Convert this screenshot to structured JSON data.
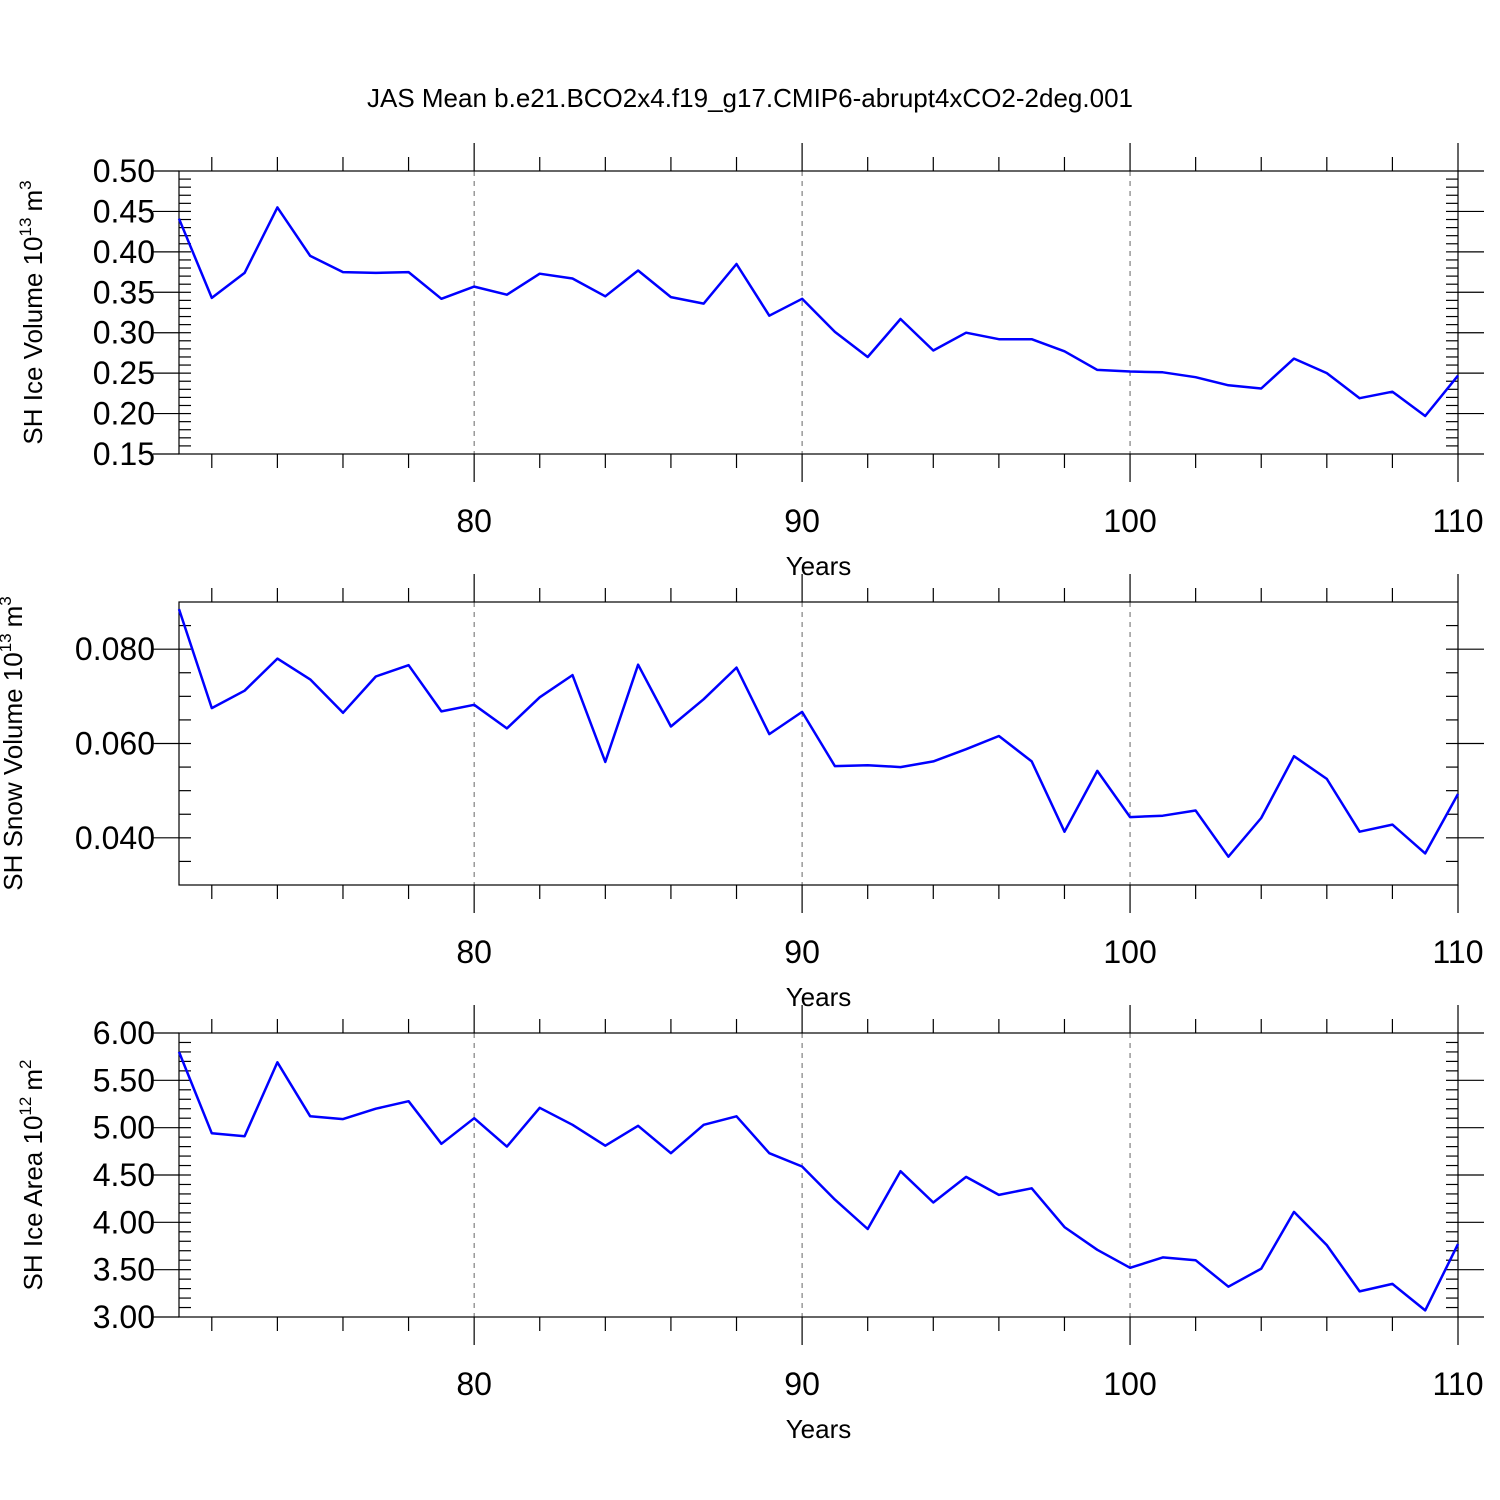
{
  "figure": {
    "title": "JAS Mean b.e21.BCO2x4.f19_g17.CMIP6-abrupt4xCO2-2deg.001",
    "line_color": "#0000ff"
  },
  "chart_data": [
    {
      "type": "line",
      "xlabel": "Years",
      "ylabel_main": "SH Ice Volume 10",
      "ylabel_exp": "13",
      "ylabel_unit": "m",
      "ylabel_unit_exp": "3",
      "xlim": [
        71,
        110
      ],
      "ylim": [
        0.15,
        0.5
      ],
      "xticks": [
        80,
        90,
        100,
        110
      ],
      "xtick_labels": [
        "80",
        "90",
        "100",
        "110"
      ],
      "yticks": [
        0.15,
        0.2,
        0.25,
        0.3,
        0.35,
        0.4,
        0.45,
        0.5
      ],
      "ytick_labels": [
        "0.15",
        "0.20",
        "0.25",
        "0.30",
        "0.35",
        "0.40",
        "0.45",
        "0.50"
      ],
      "yminor_step": 0.01,
      "grid_x": [
        80,
        90,
        100
      ],
      "x": [
        71,
        72,
        73,
        74,
        75,
        76,
        77,
        78,
        79,
        80,
        81,
        82,
        83,
        84,
        85,
        86,
        87,
        88,
        89,
        90,
        91,
        92,
        93,
        94,
        95,
        96,
        97,
        98,
        99,
        100,
        101,
        102,
        103,
        104,
        105,
        106,
        107,
        108,
        109,
        110
      ],
      "values": [
        0.441,
        0.343,
        0.374,
        0.455,
        0.395,
        0.375,
        0.374,
        0.375,
        0.342,
        0.357,
        0.347,
        0.373,
        0.367,
        0.345,
        0.377,
        0.344,
        0.336,
        0.385,
        0.321,
        0.342,
        0.301,
        0.27,
        0.317,
        0.278,
        0.3,
        0.292,
        0.292,
        0.277,
        0.254,
        0.252,
        0.251,
        0.245,
        0.235,
        0.231,
        0.268,
        0.25,
        0.219,
        0.227,
        0.197,
        0.247
      ]
    },
    {
      "type": "line",
      "xlabel": "Years",
      "ylabel_main": "SH Snow Volume 10",
      "ylabel_exp": "13",
      "ylabel_unit": "m",
      "ylabel_unit_exp": "3",
      "xlim": [
        71,
        110
      ],
      "ylim": [
        0.03,
        0.09
      ],
      "xticks": [
        80,
        90,
        100,
        110
      ],
      "xtick_labels": [
        "80",
        "90",
        "100",
        "110"
      ],
      "yticks": [
        0.04,
        0.06,
        0.08
      ],
      "ytick_labels": [
        "0.040",
        "0.060",
        "0.080"
      ],
      "yminor_step": 0.005,
      "grid_x": [
        80,
        90,
        100
      ],
      "x": [
        71,
        72,
        73,
        74,
        75,
        76,
        77,
        78,
        79,
        80,
        81,
        82,
        83,
        84,
        85,
        86,
        87,
        88,
        89,
        90,
        91,
        92,
        93,
        94,
        95,
        96,
        97,
        98,
        99,
        100,
        101,
        102,
        103,
        104,
        105,
        106,
        107,
        108,
        109,
        110
      ],
      "values": [
        0.0885,
        0.0675,
        0.0712,
        0.078,
        0.0736,
        0.0665,
        0.0742,
        0.0766,
        0.0668,
        0.0682,
        0.0632,
        0.0698,
        0.0745,
        0.0561,
        0.0767,
        0.0636,
        0.0694,
        0.0761,
        0.062,
        0.0667,
        0.0552,
        0.0554,
        0.055,
        0.0562,
        0.0588,
        0.0616,
        0.0562,
        0.0413,
        0.0542,
        0.0444,
        0.0447,
        0.0458,
        0.036,
        0.0442,
        0.0573,
        0.0525,
        0.0413,
        0.0428,
        0.0367,
        0.0493
      ]
    },
    {
      "type": "line",
      "xlabel": "Years",
      "ylabel_main": "SH Ice Area 10",
      "ylabel_exp": "12",
      "ylabel_unit": "m",
      "ylabel_unit_exp": "2",
      "xlim": [
        71,
        110
      ],
      "ylim": [
        3.0,
        6.0
      ],
      "xticks": [
        80,
        90,
        100,
        110
      ],
      "xtick_labels": [
        "80",
        "90",
        "100",
        "110"
      ],
      "yticks": [
        3.0,
        3.5,
        4.0,
        4.5,
        5.0,
        5.5,
        6.0
      ],
      "ytick_labels": [
        "3.00",
        "3.50",
        "4.00",
        "4.50",
        "5.00",
        "5.50",
        "6.00"
      ],
      "yminor_step": 0.1,
      "grid_x": [
        80,
        90,
        100
      ],
      "x": [
        71,
        72,
        73,
        74,
        75,
        76,
        77,
        78,
        79,
        80,
        81,
        82,
        83,
        84,
        85,
        86,
        87,
        88,
        89,
        90,
        91,
        92,
        93,
        94,
        95,
        96,
        97,
        98,
        99,
        100,
        101,
        102,
        103,
        104,
        105,
        106,
        107,
        108,
        109,
        110
      ],
      "values": [
        5.8,
        4.94,
        4.91,
        5.69,
        5.12,
        5.09,
        5.2,
        5.28,
        4.83,
        5.1,
        4.8,
        5.21,
        5.03,
        4.81,
        5.02,
        4.73,
        5.03,
        5.12,
        4.73,
        4.59,
        4.24,
        3.93,
        4.54,
        4.21,
        4.48,
        4.29,
        4.36,
        3.95,
        3.71,
        3.52,
        3.63,
        3.6,
        3.32,
        3.51,
        4.11,
        3.76,
        3.27,
        3.35,
        3.07,
        3.77
      ]
    }
  ]
}
